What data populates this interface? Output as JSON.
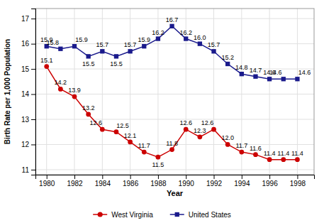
{
  "chart_data": {
    "type": "line",
    "xlabel": "Year",
    "ylabel": "Birth Rate per 1,000 Population",
    "x": [
      1980,
      1981,
      1982,
      1983,
      1984,
      1985,
      1986,
      1987,
      1988,
      1989,
      1990,
      1991,
      1992,
      1993,
      1994,
      1995,
      1996,
      1997,
      1998
    ],
    "series": [
      {
        "name": "West Virginia",
        "color": "#cc0000",
        "marker": "circle",
        "values": [
          15.1,
          14.2,
          13.9,
          13.2,
          12.6,
          12.5,
          12.1,
          11.7,
          11.5,
          11.8,
          12.6,
          12.3,
          12.6,
          12.0,
          11.7,
          11.6,
          11.4,
          11.4,
          11.4
        ],
        "value_labels": [
          "15.1",
          "14.2",
          "13.9",
          "13.2",
          "12.6",
          "12.5",
          "12.1",
          "11.7",
          "11.5",
          "11.8",
          "12.6",
          "12.3",
          "12.6",
          "12.0",
          "11.7",
          "11.6",
          "11.4",
          "11.4",
          "11.4"
        ]
      },
      {
        "name": "United States",
        "color": "#1a1a8c",
        "marker": "square",
        "values": [
          15.9,
          15.8,
          15.9,
          15.5,
          15.7,
          15.5,
          15.7,
          15.9,
          16.2,
          16.7,
          16.2,
          16.0,
          15.7,
          15.2,
          14.8,
          14.7,
          14.6,
          14.6,
          14.6
        ],
        "value_labels": [
          "15.9",
          "15.8",
          "15.9",
          "15.5",
          "15.7",
          "15.5",
          "15.7",
          "15.9",
          "16.2",
          "16.7",
          "16.2",
          "16.0",
          "15.7",
          "15.2",
          "14.8",
          "14.7",
          "14.6",
          "14.6",
          "14.6"
        ]
      }
    ],
    "xlim": [
      1979.2,
      1999.2
    ],
    "xticks": [
      1980,
      1982,
      1984,
      1986,
      1988,
      1990,
      1992,
      1994,
      1996,
      1998
    ],
    "ylim": [
      10.8,
      17.4
    ],
    "yticks": [
      11,
      12,
      13,
      14,
      15,
      16,
      17
    ],
    "grid": true,
    "legend": "bottom",
    "data_labels": true
  }
}
